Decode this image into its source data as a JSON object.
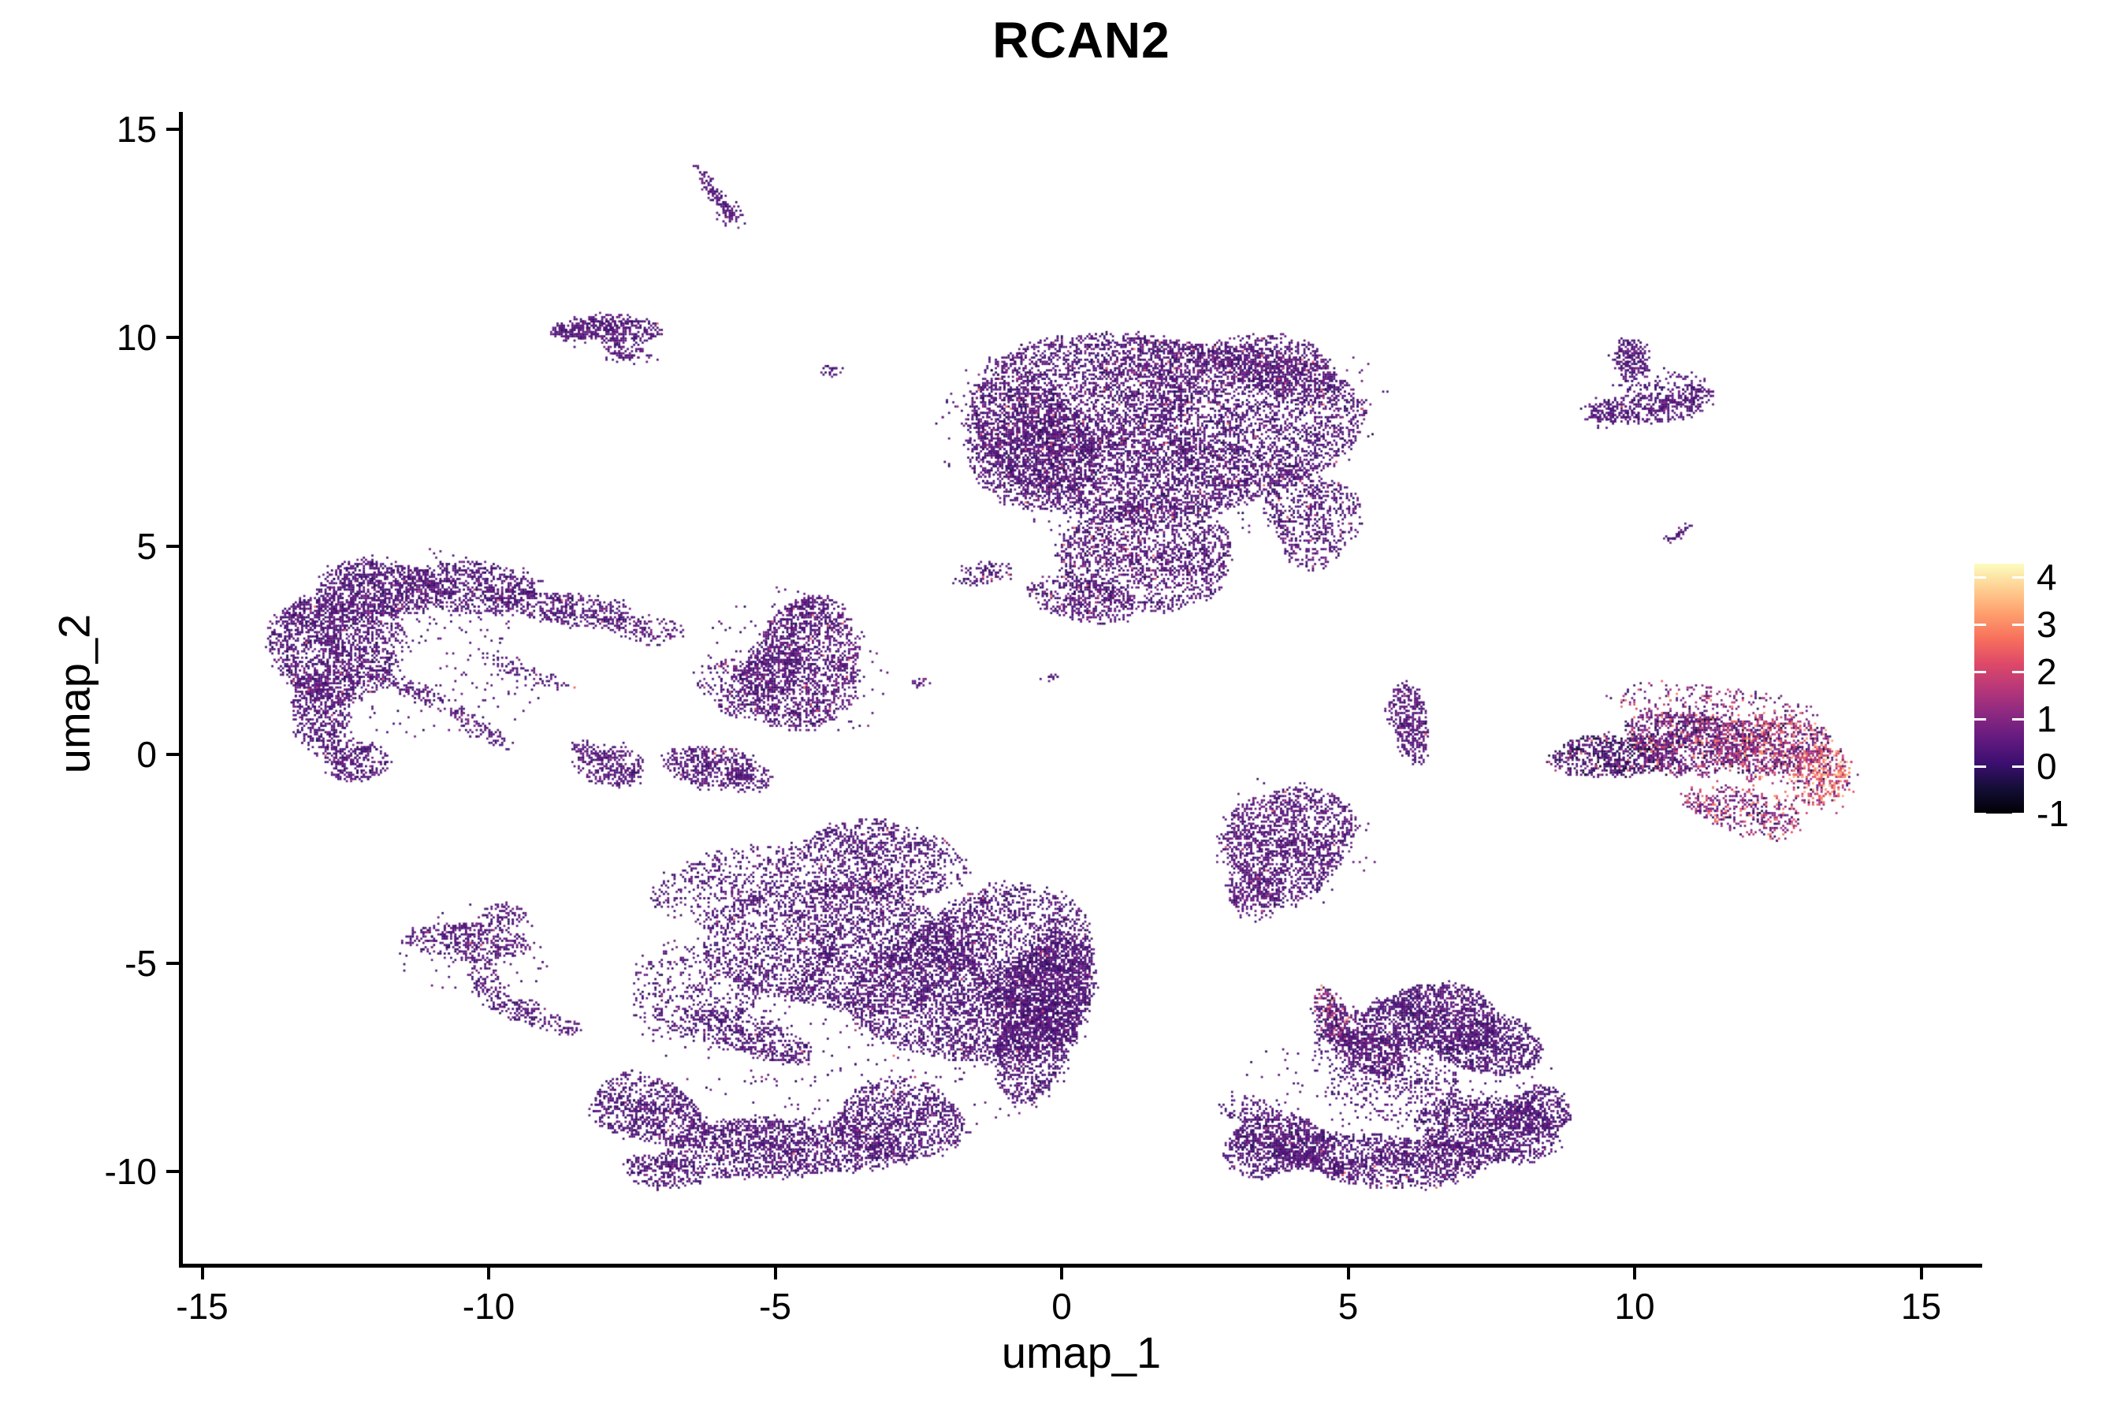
{
  "chart_data": {
    "type": "scatter",
    "variant": "umap_feature_plot_rasterized",
    "title": "RCAN2",
    "xlabel": "umap_1",
    "ylabel": "umap_2",
    "x_ticks": [
      -15,
      -10,
      -5,
      0,
      5,
      10,
      15
    ],
    "y_ticks": [
      15,
      10,
      5,
      0,
      -5,
      -10
    ],
    "x_domain": [
      -15.4,
      16.0
    ],
    "y_domain": [
      -12.3,
      15.4
    ],
    "grid": false,
    "legend_position": "right",
    "colorbar": {
      "label_values": [
        4,
        3,
        2,
        1,
        0,
        -1
      ],
      "vmin": -1,
      "vmax": 4.28,
      "palette": "magma",
      "stops": [
        {
          "t": 0.0,
          "c": "#000004"
        },
        {
          "t": 0.1,
          "c": "#140e36"
        },
        {
          "t": 0.2,
          "c": "#3b0f70"
        },
        {
          "t": 0.3,
          "c": "#641a80"
        },
        {
          "t": 0.4,
          "c": "#8c2981"
        },
        {
          "t": 0.5,
          "c": "#b73779"
        },
        {
          "t": 0.6,
          "c": "#de4968"
        },
        {
          "t": 0.7,
          "c": "#f7705c"
        },
        {
          "t": 0.8,
          "c": "#fe9f6d"
        },
        {
          "t": 0.9,
          "c": "#fecf92"
        },
        {
          "t": 1.0,
          "c": "#fcfdbf"
        }
      ]
    },
    "expr_default": {
      "mean": 0.33,
      "sd": 0.27,
      "hotProb": 0.008,
      "hotMin": 1.4,
      "hotMax": 2.7,
      "cap": 1.35,
      "min": -0.7
    },
    "clusters": [
      {
        "name": "top-streak",
        "expr": {
          "mean": 0.35,
          "sd": 0.22,
          "hotProb": 0
        },
        "blobs": [
          [
            -6.05,
            13.45,
            0.72,
            0.1,
            -62,
            115
          ],
          [
            -5.75,
            12.95,
            0.25,
            0.3,
            0,
            30
          ]
        ]
      },
      {
        "name": "top-left-oval",
        "expr": {
          "mean": 0.35,
          "sd": 0.25,
          "hotProb": 0.004
        },
        "blobs": [
          [
            -7.9,
            10.2,
            0.85,
            0.36,
            -4,
            420
          ],
          [
            -7.6,
            9.62,
            0.5,
            0.22,
            -18,
            80
          ],
          [
            -8.55,
            10.1,
            0.32,
            0.2,
            0,
            55
          ]
        ]
      },
      {
        "name": "big-top-center",
        "expr": {
          "mean": 0.35,
          "sd": 0.3,
          "hotProb": 0.02,
          "hotMin": 1.4,
          "hotMax": 2.9
        },
        "blobs": [
          [
            1.7,
            7.9,
            3.15,
            2.4,
            0,
            7200
          ],
          [
            -0.55,
            7.4,
            1.2,
            1.5,
            8,
            1400
          ],
          [
            3.8,
            9.3,
            1.1,
            0.75,
            -18,
            650
          ],
          [
            4.35,
            5.7,
            0.8,
            1.2,
            0,
            650
          ],
          [
            1.5,
            4.75,
            1.65,
            1.2,
            -8,
            1600
          ],
          [
            0.35,
            3.7,
            0.95,
            0.5,
            -14,
            380
          ],
          [
            -1.35,
            4.35,
            0.5,
            0.28,
            18,
            100
          ],
          [
            1.6,
            7.6,
            3.6,
            2.85,
            0,
            420
          ],
          [
            -4.0,
            9.2,
            0.2,
            0.13,
            -10,
            24
          ]
        ]
      },
      {
        "name": "top-right-crescent",
        "expr": {
          "mean": 0.35,
          "sd": 0.25,
          "hotProb": 0.006
        },
        "blobs": [
          [
            10.2,
            8.3,
            1.05,
            0.33,
            7,
            380
          ],
          [
            11.12,
            8.6,
            0.25,
            0.33,
            35,
            75
          ],
          [
            9.95,
            9.45,
            0.32,
            0.52,
            8,
            210
          ],
          [
            9.45,
            8.2,
            0.35,
            0.4,
            0,
            60
          ],
          [
            10.45,
            8.85,
            0.75,
            0.45,
            0,
            110
          ]
        ]
      },
      {
        "name": "right-small-streak",
        "expr": {
          "mean": 0.4,
          "sd": 0.3,
          "hotProb": 0.06
        },
        "blobs": [
          [
            10.7,
            5.22,
            0.4,
            0.08,
            43,
            40
          ]
        ]
      },
      {
        "name": "left-crescent",
        "expr": {
          "mean": 0.35,
          "sd": 0.27,
          "hotProb": 0.008
        },
        "blobs": [
          [
            -12.65,
            2.6,
            1.05,
            1.5,
            8,
            1700
          ],
          [
            -11.9,
            3.95,
            1.05,
            0.75,
            -14,
            800
          ],
          [
            -10.3,
            4.0,
            1.35,
            0.55,
            -8,
            700
          ],
          [
            -8.65,
            3.5,
            1.1,
            0.42,
            -12,
            400
          ],
          [
            -7.3,
            3.0,
            0.75,
            0.3,
            -16,
            140
          ],
          [
            -12.95,
            0.95,
            0.48,
            0.9,
            10,
            430
          ],
          [
            -12.35,
            -0.15,
            0.52,
            0.55,
            25,
            300
          ],
          [
            -11.2,
            1.45,
            0.9,
            0.2,
            -33,
            120
          ],
          [
            -10.2,
            0.65,
            0.8,
            0.18,
            -40,
            85
          ],
          [
            -9.3,
            1.95,
            0.85,
            0.17,
            -25,
            80
          ],
          [
            -11.4,
            2.6,
            2.5,
            2.0,
            0,
            240
          ]
        ]
      },
      {
        "name": "mid-left-triangle",
        "expr": {
          "mean": 0.38,
          "sd": 0.28,
          "hotProb": 0.012
        },
        "blobs": [
          [
            -4.5,
            2.1,
            1.05,
            1.5,
            8,
            1400
          ],
          [
            -5.45,
            1.65,
            0.8,
            0.8,
            0,
            420
          ],
          [
            -4.35,
            3.3,
            0.6,
            0.5,
            0,
            220
          ],
          [
            -4.7,
            2.2,
            1.5,
            1.85,
            0,
            170
          ]
        ]
      },
      {
        "name": "small-arc",
        "expr": {
          "mean": 0.35,
          "sd": 0.25,
          "hotProb": 0.006
        },
        "blobs": [
          [
            -7.85,
            -0.3,
            0.62,
            0.45,
            -28,
            280
          ],
          [
            -8.35,
            0.12,
            0.25,
            0.2,
            0,
            45
          ]
        ]
      },
      {
        "name": "small-blob",
        "expr": {
          "mean": 0.35,
          "sd": 0.25,
          "hotProb": 0.006
        },
        "blobs": [
          [
            -6.15,
            -0.3,
            0.8,
            0.5,
            -10,
            450
          ],
          [
            -5.45,
            -0.6,
            0.42,
            0.28,
            0,
            100
          ]
        ]
      },
      {
        "name": "center-specks",
        "expr": {
          "mean": 0.35,
          "sd": 0.2,
          "hotProb": 0
        },
        "blobs": [
          [
            -2.45,
            1.72,
            0.22,
            0.09,
            14,
            16
          ],
          [
            -0.2,
            1.83,
            0.17,
            0.07,
            0,
            12
          ]
        ]
      },
      {
        "name": "bottom-left-mass",
        "expr": {
          "mean": 0.33,
          "sd": 0.27,
          "hotProb": 0.006
        },
        "blobs": [
          [
            -1.4,
            -5.4,
            2.1,
            2.05,
            0,
            4200
          ],
          [
            -0.35,
            -6.2,
            0.85,
            1.9,
            -10,
            1900
          ],
          [
            -4.0,
            -4.6,
            2.0,
            1.75,
            0,
            2400
          ],
          [
            -3.3,
            -2.55,
            1.5,
            1.0,
            -6,
            1050
          ],
          [
            -5.9,
            -3.1,
            1.3,
            0.8,
            18,
            420
          ],
          [
            -6.3,
            -5.6,
            1.3,
            1.15,
            0,
            400
          ],
          [
            -5.6,
            -6.7,
            1.5,
            0.45,
            -26,
            520
          ],
          [
            -7.2,
            -8.55,
            1.1,
            0.75,
            -24,
            800
          ],
          [
            -4.9,
            -9.45,
            2.0,
            0.75,
            -4,
            1500
          ],
          [
            -2.85,
            -8.8,
            1.25,
            0.9,
            8,
            1050
          ],
          [
            -6.95,
            -10.0,
            0.7,
            0.38,
            -16,
            260
          ],
          [
            -3.2,
            -6.0,
            3.7,
            3.3,
            0,
            400
          ]
        ]
      },
      {
        "name": "small-left-cluster",
        "expr": {
          "mean": 0.35,
          "sd": 0.25,
          "hotProb": 0.005
        },
        "blobs": [
          [
            -10.35,
            -4.5,
            1.0,
            0.5,
            -8,
            420
          ],
          [
            -9.7,
            -3.85,
            0.38,
            0.3,
            0,
            85
          ],
          [
            -10.0,
            -5.5,
            0.28,
            0.6,
            12,
            110
          ],
          [
            -9.4,
            -6.15,
            0.5,
            0.28,
            -34,
            110
          ],
          [
            -8.75,
            -6.5,
            0.38,
            0.2,
            -20,
            55
          ],
          [
            -10.2,
            -4.7,
            1.5,
            1.0,
            0,
            65
          ]
        ]
      },
      {
        "name": "center-teardrop",
        "expr": {
          "mean": 0.4,
          "sd": 0.28,
          "hotProb": 0.008
        },
        "blobs": [
          [
            3.95,
            -2.1,
            1.15,
            1.3,
            0,
            1500
          ],
          [
            3.35,
            -3.35,
            0.5,
            0.55,
            25,
            240
          ],
          [
            4.0,
            -2.3,
            1.5,
            1.7,
            0,
            120
          ]
        ]
      },
      {
        "name": "small-vertical-crescent",
        "expr": {
          "mean": 0.38,
          "sd": 0.25,
          "hotProb": 0.005
        },
        "blobs": [
          [
            6.05,
            0.8,
            0.32,
            0.95,
            7,
            380
          ]
        ]
      },
      {
        "name": "bottom-right-butterfly",
        "expr": {
          "mean": 0.33,
          "sd": 0.27,
          "hotProb": 0.006
        },
        "blobs": [
          [
            6.45,
            -6.35,
            1.15,
            0.85,
            -8,
            1300
          ],
          [
            7.55,
            -7.0,
            0.85,
            0.7,
            -18,
            700
          ],
          [
            4.75,
            -6.35,
            0.28,
            0.75,
            12,
            290
          ],
          [
            4.95,
            -6.75,
            0.65,
            0.7,
            0,
            170
          ],
          [
            5.4,
            -7.15,
            0.75,
            0.4,
            -33,
            400
          ],
          [
            5.9,
            -7.85,
            1.3,
            0.9,
            -8,
            400
          ],
          [
            3.75,
            -9.35,
            0.95,
            0.75,
            -8,
            950
          ],
          [
            5.6,
            -9.7,
            1.9,
            0.6,
            -2,
            1300
          ],
          [
            7.5,
            -9.0,
            1.15,
            0.8,
            -14,
            1100
          ],
          [
            8.3,
            -8.55,
            0.6,
            0.55,
            0,
            420
          ],
          [
            3.2,
            -8.5,
            0.45,
            0.35,
            0,
            75
          ],
          [
            5.8,
            -8.0,
            2.6,
            1.9,
            0,
            250
          ]
        ],
        "blob_expr": {
          "2": {
            "mean": 0.55,
            "sd": 0.45,
            "hotProb": 0.13,
            "hotMin": 1.6,
            "hotMax": 3.4,
            "cap": 1.6
          },
          "4": {
            "mean": 0.4,
            "sd": 0.3,
            "hotProb": 0.03,
            "hotMin": 1.3,
            "hotMax": 2.6,
            "cap": 1.4
          }
        }
      },
      {
        "name": "right-high-expression",
        "expr": {
          "mean": 0.5,
          "sd": 0.5,
          "hotProb": 0.2,
          "hotMin": 1.3,
          "hotMax": 3.2,
          "cap": 1.8,
          "min": -0.9
        },
        "blobs": [
          [
            9.6,
            -0.05,
            1.05,
            0.5,
            -4,
            650
          ],
          [
            11.0,
            0.3,
            1.25,
            0.7,
            -4,
            1100
          ],
          [
            12.4,
            0.2,
            0.95,
            0.75,
            0,
            820
          ],
          [
            13.25,
            -0.5,
            0.45,
            0.8,
            8,
            360
          ],
          [
            11.9,
            -1.35,
            1.15,
            0.5,
            -16,
            420
          ],
          [
            11.3,
            1.15,
            1.6,
            0.55,
            -4,
            280
          ],
          [
            12.9,
            -0.4,
            1.1,
            1.0,
            0,
            120
          ]
        ],
        "blob_expr": {
          "0": {
            "mean": 0.2,
            "sd": 0.45,
            "hotProb": 0.06,
            "hotMin": 1.3,
            "hotMax": 2.6,
            "cap": 1.6,
            "min": -0.9
          },
          "2": {
            "mean": 0.8,
            "sd": 0.6,
            "hotProb": 0.35,
            "hotMin": 1.4,
            "hotMax": 3.6,
            "cap": 2.4,
            "min": -0.9
          },
          "3": {
            "mean": 1.6,
            "sd": 0.9,
            "hotProb": 0.5,
            "hotMin": 1.8,
            "hotMax": 3.9,
            "cap": 3.5,
            "min": -0.8
          },
          "4": {
            "mean": 0.7,
            "sd": 0.5,
            "hotProb": 0.28,
            "hotMin": 1.3,
            "hotMax": 3.2,
            "cap": 2.0,
            "min": -0.9
          },
          "5": {
            "mean": 0.6,
            "sd": 0.5,
            "hotProb": 0.3,
            "hotMin": 1.3,
            "hotMax": 3.0,
            "cap": 2.0,
            "min": -0.9
          },
          "6": {
            "mean": 1.0,
            "sd": 0.7,
            "hotProb": 0.4,
            "hotMin": 1.5,
            "hotMax": 3.4,
            "cap": 2.8,
            "min": -0.8
          }
        }
      }
    ]
  }
}
